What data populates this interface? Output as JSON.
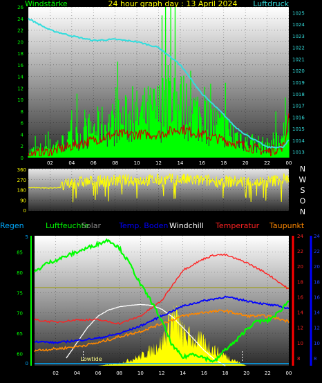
{
  "header": {
    "wind_label": "Windstärke",
    "title": "24 hour graph day : 13 April 2024",
    "pressure_label": "Luftdruck"
  },
  "colors": {
    "wind": "#00ff00",
    "gust_dark": "#cc0000",
    "pressure": "#33dddd",
    "wind_dir": "#ffff00",
    "humidity": "#00ff00",
    "solar": "#ffff00",
    "soil_temp": "#0000ff",
    "windchill": "#ffffff",
    "temperature": "#ff2222",
    "dewpoint": "#ff8800",
    "rain": "#00aaff",
    "background": "#000000",
    "plot_gradient_top": "#ffffff",
    "plot_gradient_bottom": "#333333"
  },
  "chart_data": [
    {
      "type": "line",
      "title": "24 hour graph day : 13 April 2024",
      "x_ticks": [
        "02",
        "04",
        "06",
        "08",
        "10",
        "12",
        "14",
        "16",
        "18",
        "20",
        "22",
        "00"
      ],
      "left_axis": {
        "label": "Windstärke",
        "ticks": [
          0,
          2,
          4,
          6,
          8,
          10,
          12,
          14,
          16,
          18,
          20,
          22,
          24,
          26
        ],
        "range": [
          0,
          26
        ]
      },
      "right_axis": {
        "label": "Luftdruck",
        "ticks": [
          1013,
          1014,
          1015,
          1016,
          1017,
          1018,
          1019,
          1020,
          1021,
          1022,
          1023,
          1024,
          1025
        ],
        "range": [
          1012.5,
          1025.5
        ]
      },
      "series": [
        {
          "name": "Luftdruck",
          "x": [
            0,
            2,
            4,
            6,
            8,
            10,
            12,
            14,
            16,
            18,
            19,
            20,
            22,
            23.5,
            24
          ],
          "values": [
            1024.5,
            1023.5,
            1023,
            1022.6,
            1022.7,
            1022.5,
            1022,
            1020.5,
            1018,
            1016.2,
            1015.2,
            1014.5,
            1013.4,
            1013.4,
            1014
          ]
        },
        {
          "name": "Windstärke",
          "x": [
            0,
            2,
            4,
            6,
            8,
            10,
            12,
            13,
            14,
            16,
            18,
            20,
            22,
            23.6,
            24
          ],
          "values": [
            1,
            2,
            3,
            5,
            6,
            7,
            8,
            10,
            9,
            7,
            5,
            3,
            2,
            4,
            15
          ]
        },
        {
          "name": "Böen",
          "x": [
            0,
            2,
            4,
            6,
            8,
            10,
            12,
            14,
            16,
            18,
            20,
            22,
            23.6,
            24
          ],
          "values": [
            0.5,
            1,
            2,
            3,
            4,
            4,
            4,
            5,
            4,
            3,
            2,
            1,
            2,
            8
          ]
        }
      ]
    },
    {
      "type": "line",
      "x_ticks": [
        "02",
        "04",
        "06",
        "08",
        "10",
        "12",
        "14",
        "16",
        "18",
        "20",
        "22",
        "00"
      ],
      "left_axis": {
        "ticks": [
          0,
          90,
          180,
          270,
          360
        ],
        "range": [
          0,
          360
        ]
      },
      "right_labels": [
        "N",
        "W",
        "S",
        "O",
        "N"
      ],
      "series": [
        {
          "name": "Windrichtung",
          "x": [
            0,
            2,
            3,
            4,
            6,
            8,
            10,
            12,
            14,
            16,
            18,
            20,
            22,
            23,
            24
          ],
          "values": [
            200,
            195,
            200,
            240,
            255,
            260,
            265,
            265,
            270,
            260,
            255,
            250,
            245,
            270,
            280
          ]
        }
      ]
    },
    {
      "type": "line",
      "x_ticks": [
        "02",
        "04",
        "06",
        "08",
        "10",
        "12",
        "14",
        "16",
        "18",
        "20",
        "22",
        "00"
      ],
      "legend": [
        "Regen",
        "Luftfeuchte",
        "Solar",
        "Temp. Boden",
        "Windchill",
        "Temperatur",
        "Taupunkt"
      ],
      "annotation": "Lowtide",
      "humidity_axis": {
        "ticks": [
          60,
          65,
          70,
          75,
          80,
          85
        ],
        "range": [
          57,
          89
        ]
      },
      "rain_axis": {
        "ticks": [
          0,
          5
        ],
        "range": [
          0,
          5
        ]
      },
      "temp_axis": {
        "ticks": [
          8,
          10,
          12,
          14,
          16,
          18,
          20,
          22,
          24
        ],
        "range": [
          7,
          24
        ]
      },
      "solar_axis": {
        "ticks": [
          8,
          10,
          12,
          14,
          16,
          18,
          20,
          22,
          24
        ],
        "range": [
          7,
          24
        ]
      },
      "series": [
        {
          "name": "Luftfeuchte",
          "x": [
            0,
            1,
            2,
            3,
            4,
            5,
            6,
            7,
            8,
            9,
            10,
            11,
            12,
            13,
            14,
            15,
            16,
            17,
            18,
            19,
            20,
            21,
            22,
            23,
            24
          ],
          "values": [
            80,
            82,
            83,
            84,
            85,
            86,
            87,
            88,
            86,
            82,
            77,
            73,
            68,
            62,
            59,
            60,
            59,
            58,
            61,
            63,
            66,
            68,
            68,
            70,
            73
          ]
        },
        {
          "name": "Temp. Boden",
          "x": [
            0,
            2,
            4,
            6,
            8,
            10,
            12,
            14,
            16,
            18,
            20,
            22,
            23,
            24
          ],
          "values": [
            10.2,
            10,
            10.3,
            10.6,
            11.2,
            12.2,
            13.5,
            14.8,
            15.5,
            16,
            15.5,
            15,
            14.8,
            14.5
          ]
        },
        {
          "name": "Temperatur",
          "x": [
            0,
            2,
            4,
            6,
            8,
            10,
            12,
            13,
            14,
            16,
            17,
            18,
            20,
            22,
            23,
            24
          ],
          "values": [
            13,
            12.7,
            13,
            13,
            12.5,
            13.5,
            15.5,
            17.5,
            19.5,
            21,
            21.5,
            21.5,
            20.5,
            19,
            18,
            17
          ]
        },
        {
          "name": "Taupunkt",
          "x": [
            0,
            2,
            4,
            6,
            8,
            10,
            12,
            14,
            16,
            18,
            20,
            22,
            24
          ],
          "values": [
            9,
            9.2,
            9.5,
            10,
            10.8,
            11.5,
            12.5,
            13.5,
            14,
            14.2,
            13.5,
            13.5,
            12.8
          ]
        },
        {
          "name": "Windchill",
          "x": [
            3,
            4,
            5,
            6,
            7,
            8,
            9,
            10,
            11,
            12,
            13,
            14,
            15,
            16,
            17,
            18
          ],
          "values": [
            8,
            10,
            12,
            13.5,
            14.3,
            14.7,
            14.9,
            15,
            14.9,
            14.4,
            13.4,
            12,
            10.5,
            9,
            7.8,
            7
          ]
        },
        {
          "name": "Solar",
          "x": [
            6,
            8,
            10,
            11,
            12,
            12.5,
            13,
            13.5,
            14,
            15,
            16,
            17,
            18,
            19,
            20
          ],
          "values": [
            7,
            7.3,
            8.2,
            9,
            10,
            11.5,
            13.5,
            12.6,
            11,
            10.5,
            10,
            9,
            8.3,
            7.6,
            7
          ]
        }
      ]
    }
  ]
}
